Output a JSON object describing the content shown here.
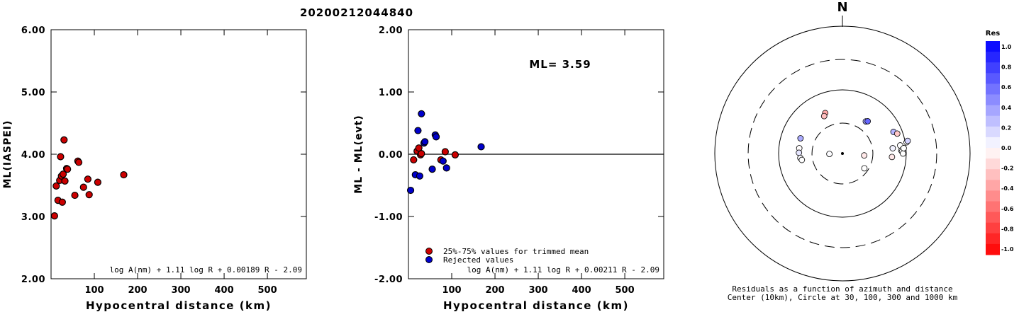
{
  "title": "20200212044840",
  "chart_data": [
    {
      "type": "scatter",
      "id": "ml_vs_distance",
      "ylabel": "ML(IASPEI)",
      "xlabel": "Hypocentral distance (km)",
      "xlim": [
        0,
        590
      ],
      "ylim": [
        2.0,
        6.0
      ],
      "x_ticks": [
        "100",
        "200",
        "300",
        "400",
        "500"
      ],
      "y_ticks": [
        "2.00",
        "3.00",
        "4.00",
        "5.00",
        "6.00"
      ],
      "formula": "log A(nm) + 1.11 log R + 0.00189 R - 2.09",
      "series": [
        {
          "color": "#cc0000",
          "points": [
            [
              8,
              3.01
            ],
            [
              12,
              3.49
            ],
            [
              16,
              3.26
            ],
            [
              20,
              3.58
            ],
            [
              22,
              3.96
            ],
            [
              24,
              3.65
            ],
            [
              26,
              3.23
            ],
            [
              28,
              3.68
            ],
            [
              30,
              4.23
            ],
            [
              32,
              3.57
            ],
            [
              36,
              3.77
            ],
            [
              38,
              3.76
            ],
            [
              55,
              3.34
            ],
            [
              62,
              3.89
            ],
            [
              64,
              3.87
            ],
            [
              75,
              3.47
            ],
            [
              85,
              3.6
            ],
            [
              88,
              3.35
            ],
            [
              108,
              3.55
            ],
            [
              168,
              3.67
            ]
          ]
        }
      ]
    },
    {
      "type": "scatter",
      "id": "residual_vs_distance",
      "ylabel": "ML - ML(evt)",
      "xlabel": "Hypocentral distance (km)",
      "xlim": [
        0,
        590
      ],
      "ylim": [
        -2.0,
        2.0
      ],
      "x_ticks": [
        "100",
        "200",
        "300",
        "400",
        "500"
      ],
      "y_ticks": [
        "-2.00",
        "-1.00",
        "0.00",
        "1.00",
        "2.00"
      ],
      "annotation": "ML= 3.59",
      "formula": "log A(nm) + 1.11 log R + 0.00211 R - 2.09",
      "legend": [
        {
          "label": "25%-75% values for trimmed mean",
          "color": "#cc0000"
        },
        {
          "label": "Rejected values",
          "color": "#0000cc"
        }
      ],
      "series": [
        {
          "name": "25%-75% values for trimmed mean",
          "color": "#cc0000",
          "points": [
            [
              12,
              -0.09
            ],
            [
              20,
              0.05
            ],
            [
              24,
              0.1
            ],
            [
              28,
              -0.01
            ],
            [
              30,
              0.01
            ],
            [
              75,
              -0.09
            ],
            [
              85,
              0.04
            ],
            [
              108,
              -0.01
            ]
          ]
        },
        {
          "name": "Rejected values",
          "color": "#0000cc",
          "points": [
            [
              5,
              -0.58
            ],
            [
              16,
              -0.33
            ],
            [
              22,
              0.38
            ],
            [
              26,
              -0.35
            ],
            [
              30,
              0.65
            ],
            [
              36,
              0.18
            ],
            [
              38,
              0.2
            ],
            [
              55,
              -0.24
            ],
            [
              62,
              0.31
            ],
            [
              64,
              0.28
            ],
            [
              80,
              -0.11
            ],
            [
              88,
              -0.22
            ],
            [
              168,
              0.12
            ]
          ]
        }
      ]
    },
    {
      "type": "polar",
      "id": "azimuth_residuals",
      "north_label": "N",
      "caption_line1": "Residuals as a function of azimuth and distance",
      "caption_line2": "Center (10km), Circle at 30, 100, 300 and 1000 km",
      "rings_km": [
        30,
        100,
        300,
        1000
      ],
      "dashed_rings_km": [
        30,
        300
      ],
      "colorbar": {
        "title": "Res",
        "labels": [
          "1.0",
          "0.8",
          "0.6",
          "0.4",
          "0.2",
          "0.0",
          "-0.2",
          "-0.4",
          "-0.6",
          "-0.8",
          "-1.0"
        ]
      },
      "stations": [
        {
          "az": 277,
          "dist": 48,
          "res": -0.01
        },
        {
          "az": 271,
          "dist": 48,
          "res": 0.1
        },
        {
          "az": 264,
          "dist": 46,
          "res": 0.02
        },
        {
          "az": 261,
          "dist": 44,
          "res": 0.0
        },
        {
          "az": 268,
          "dist": 16,
          "res": 0.01
        },
        {
          "az": 95,
          "dist": 22,
          "res": -0.09
        },
        {
          "az": 124,
          "dist": 26,
          "res": 0.0
        },
        {
          "az": 84,
          "dist": 62,
          "res": 0.05
        },
        {
          "az": 94,
          "dist": 60,
          "res": -0.09
        },
        {
          "az": 82,
          "dist": 82,
          "res": 0.0
        },
        {
          "az": 87,
          "dist": 84,
          "res": 0.0
        },
        {
          "az": 88,
          "dist": 86,
          "res": 0.0
        },
        {
          "az": 90,
          "dist": 89,
          "res": 0.0
        },
        {
          "az": 85,
          "dist": 92,
          "res": 0.0
        },
        {
          "az": 80,
          "dist": 105,
          "res": 0.0
        },
        {
          "az": 79,
          "dist": 110,
          "res": 0.18
        },
        {
          "az": 67,
          "dist": 74,
          "res": 0.3
        },
        {
          "az": 70,
          "dist": 82,
          "res": -0.22
        },
        {
          "az": 36,
          "dist": 42,
          "res": 0.35
        },
        {
          "az": 38,
          "dist": 44,
          "res": 0.6
        },
        {
          "az": 290,
          "dist": 50,
          "res": 0.33
        },
        {
          "az": 337,
          "dist": 49,
          "res": -0.35
        },
        {
          "az": 334,
          "dist": 45,
          "res": -0.25
        }
      ]
    }
  ]
}
